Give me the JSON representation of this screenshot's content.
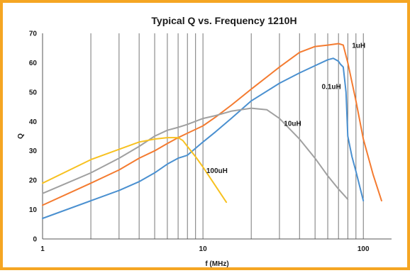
{
  "chart_data": {
    "type": "line",
    "title": "Typical Q vs. Frequency 1210H",
    "xlabel": "f (MHz)",
    "ylabel": "Q",
    "x_scale": "log",
    "xlim": [
      1,
      150
    ],
    "ylim": [
      0,
      70
    ],
    "x_ticks": [
      "1",
      "10",
      "100"
    ],
    "y_ticks": [
      "0",
      "10",
      "20",
      "30",
      "40",
      "50",
      "60",
      "70"
    ],
    "grid": "vertical",
    "series": [
      {
        "name": "1uH",
        "color": "#f47b30",
        "points": [
          [
            1,
            11.5
          ],
          [
            2,
            19
          ],
          [
            3,
            23.5
          ],
          [
            4,
            27.5
          ],
          [
            5,
            30
          ],
          [
            6,
            32.5
          ],
          [
            7,
            34.5
          ],
          [
            8,
            36
          ],
          [
            10,
            38.5
          ],
          [
            12,
            41.5
          ],
          [
            15,
            45.5
          ],
          [
            20,
            51
          ],
          [
            30,
            58.5
          ],
          [
            40,
            63.5
          ],
          [
            50,
            65.5
          ],
          [
            60,
            66
          ],
          [
            70,
            66.5
          ],
          [
            75,
            66
          ],
          [
            80,
            60
          ],
          [
            90,
            47
          ],
          [
            100,
            34
          ],
          [
            115,
            22
          ],
          [
            130,
            13
          ]
        ]
      },
      {
        "name": "0.1uH",
        "color": "#4a90d0",
        "points": [
          [
            1,
            7
          ],
          [
            2,
            13
          ],
          [
            3,
            16.5
          ],
          [
            4,
            19.5
          ],
          [
            5,
            22.5
          ],
          [
            6,
            25.5
          ],
          [
            7,
            27.5
          ],
          [
            8,
            28.5
          ],
          [
            10,
            33
          ],
          [
            12,
            36.5
          ],
          [
            15,
            41
          ],
          [
            20,
            47
          ],
          [
            30,
            53
          ],
          [
            40,
            56.5
          ],
          [
            50,
            59
          ],
          [
            60,
            61
          ],
          [
            65,
            61.5
          ],
          [
            70,
            60.5
          ],
          [
            72,
            59.5
          ],
          [
            75,
            58.5
          ],
          [
            78,
            50
          ],
          [
            80,
            35
          ],
          [
            85,
            28
          ],
          [
            90,
            23
          ],
          [
            100,
            13
          ]
        ]
      },
      {
        "name": "10uH",
        "color": "#a0a0a0",
        "points": [
          [
            1,
            15.5
          ],
          [
            2,
            22.5
          ],
          [
            3,
            27.5
          ],
          [
            4,
            31.5
          ],
          [
            5,
            35
          ],
          [
            6,
            37
          ],
          [
            7,
            38
          ],
          [
            8,
            39
          ],
          [
            10,
            41
          ],
          [
            12,
            42
          ],
          [
            15,
            43.5
          ],
          [
            20,
            44.5
          ],
          [
            25,
            44
          ],
          [
            30,
            41
          ],
          [
            40,
            34
          ],
          [
            50,
            27.5
          ],
          [
            60,
            21.5
          ],
          [
            70,
            17
          ],
          [
            80,
            13.5
          ]
        ]
      },
      {
        "name": "100uH",
        "color": "#f7c120",
        "points": [
          [
            1,
            19
          ],
          [
            2,
            27
          ],
          [
            3,
            30.5
          ],
          [
            4,
            33
          ],
          [
            5,
            34
          ],
          [
            6,
            34.5
          ],
          [
            7,
            34.5
          ],
          [
            7.5,
            33.5
          ],
          [
            8,
            31.5
          ],
          [
            9,
            28
          ],
          [
            10,
            24.5
          ],
          [
            12,
            18
          ],
          [
            14,
            12.5
          ]
        ]
      }
    ],
    "labels": [
      {
        "text": "1uH",
        "x": 85,
        "y": 65
      },
      {
        "text": "0.1uH",
        "x": 55,
        "y": 51
      },
      {
        "text": "10uH",
        "x": 32,
        "y": 38.5
      },
      {
        "text": "100uH",
        "x": 10.5,
        "y": 22.5
      }
    ]
  }
}
